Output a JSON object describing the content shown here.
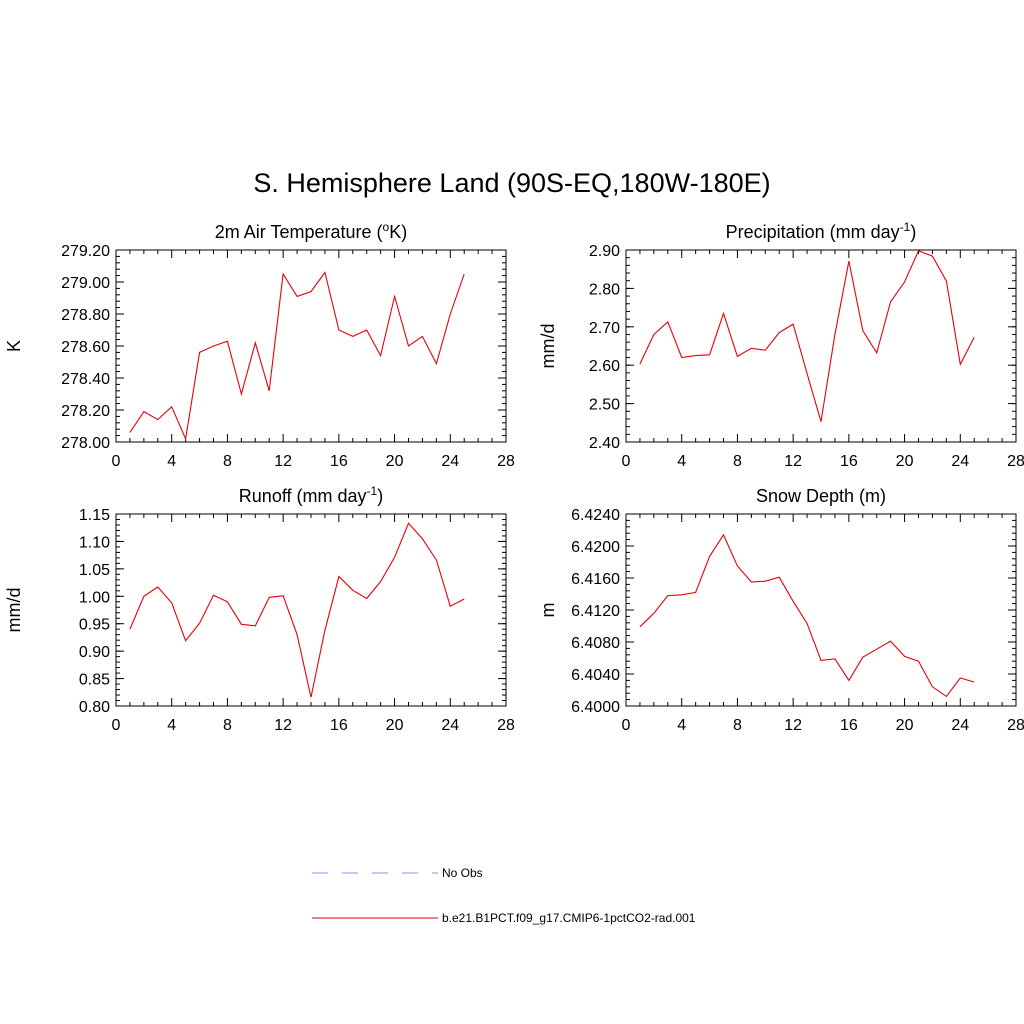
{
  "figure_title": "S. Hemisphere Land (90S-EQ,180W-180E)",
  "colors": {
    "model_line": "#e8000b",
    "obs_line": "#a8a8f0",
    "axis": "#000000"
  },
  "legend": {
    "items": [
      {
        "label": "No Obs",
        "style": "dashed",
        "color": "#a8a8f0"
      },
      {
        "label": "b.e21.B1PCT.f09_g17.CMIP6-1pctCO2-rad.001",
        "style": "solid",
        "color": "#e8000b"
      }
    ]
  },
  "chart_data": [
    {
      "type": "line",
      "title": "2m Air Temperature (",
      "title_sup": "o",
      "title_tail": "K)",
      "ylabel": "K",
      "xlim": [
        0,
        28
      ],
      "ylim": [
        278.0,
        279.2
      ],
      "xticks": [
        0,
        4,
        8,
        12,
        16,
        20,
        24,
        28
      ],
      "yticks": [
        278.0,
        278.2,
        278.4,
        278.6,
        278.8,
        279.0,
        279.2
      ],
      "ytick_labels": [
        "278.00",
        "278.20",
        "278.40",
        "278.60",
        "278.80",
        "279.00",
        "279.20"
      ],
      "x": [
        1,
        2,
        3,
        4,
        5,
        6,
        7,
        8,
        9,
        10,
        11,
        12,
        13,
        14,
        15,
        16,
        17,
        18,
        19,
        20,
        21,
        22,
        23,
        24,
        25
      ],
      "series": [
        {
          "values": [
            278.06,
            278.19,
            278.14,
            278.22,
            278.02,
            278.56,
            278.6,
            278.63,
            278.3,
            278.62,
            278.32,
            279.05,
            278.91,
            278.94,
            279.06,
            278.7,
            278.66,
            278.7,
            278.54,
            278.91,
            278.6,
            278.66,
            278.49,
            278.8,
            279.05
          ]
        }
      ]
    },
    {
      "type": "line",
      "title": "Precipitation (mm day",
      "title_sup": "-1",
      "title_tail": ")",
      "ylabel": "mm/d",
      "xlim": [
        0,
        28
      ],
      "ylim": [
        2.4,
        2.9
      ],
      "xticks": [
        0,
        4,
        8,
        12,
        16,
        20,
        24,
        28
      ],
      "yticks": [
        2.4,
        2.5,
        2.6,
        2.7,
        2.8,
        2.9
      ],
      "ytick_labels": [
        "2.40",
        "2.50",
        "2.60",
        "2.70",
        "2.80",
        "2.90"
      ],
      "x": [
        1,
        2,
        3,
        4,
        5,
        6,
        7,
        8,
        9,
        10,
        11,
        12,
        13,
        14,
        15,
        16,
        17,
        18,
        19,
        20,
        21,
        22,
        23,
        24,
        25
      ],
      "series": [
        {
          "values": [
            2.603,
            2.68,
            2.713,
            2.62,
            2.625,
            2.627,
            2.735,
            2.623,
            2.644,
            2.639,
            2.685,
            2.707,
            2.578,
            2.453,
            2.68,
            2.871,
            2.69,
            2.632,
            2.765,
            2.817,
            2.898,
            2.884,
            2.819,
            2.602,
            2.673
          ]
        }
      ]
    },
    {
      "type": "line",
      "title": "Runoff (mm day",
      "title_sup": "-1",
      "title_tail": ")",
      "ylabel": "mm/d",
      "xlim": [
        0,
        28
      ],
      "ylim": [
        0.8,
        1.15
      ],
      "xticks": [
        0,
        4,
        8,
        12,
        16,
        20,
        24,
        28
      ],
      "yticks": [
        0.8,
        0.85,
        0.9,
        0.95,
        1.0,
        1.05,
        1.1,
        1.15
      ],
      "ytick_labels": [
        "0.80",
        "0.85",
        "0.90",
        "0.95",
        "1.00",
        "1.05",
        "1.10",
        "1.15"
      ],
      "x": [
        1,
        2,
        3,
        4,
        5,
        6,
        7,
        8,
        9,
        10,
        11,
        12,
        13,
        14,
        15,
        16,
        17,
        18,
        19,
        20,
        21,
        22,
        23,
        24,
        25
      ],
      "series": [
        {
          "values": [
            0.94,
            1.0,
            1.017,
            0.988,
            0.919,
            0.951,
            1.002,
            0.99,
            0.949,
            0.946,
            0.998,
            1.001,
            0.93,
            0.816,
            0.938,
            1.036,
            1.011,
            0.996,
            1.027,
            1.071,
            1.133,
            1.105,
            1.066,
            0.982,
            0.995
          ]
        }
      ]
    },
    {
      "type": "line",
      "title": "Snow Depth (m)",
      "title_sup": "",
      "title_tail": "",
      "ylabel": "m",
      "xlim": [
        0,
        28
      ],
      "ylim": [
        6.4,
        6.424
      ],
      "xticks": [
        0,
        4,
        8,
        12,
        16,
        20,
        24,
        28
      ],
      "yticks": [
        6.4,
        6.404,
        6.408,
        6.412,
        6.416,
        6.42,
        6.424
      ],
      "ytick_labels": [
        "6.4000",
        "6.4040",
        "6.4080",
        "6.4120",
        "6.4160",
        "6.4200",
        "6.4240"
      ],
      "x": [
        1,
        2,
        3,
        4,
        5,
        6,
        7,
        8,
        9,
        10,
        11,
        12,
        13,
        14,
        15,
        16,
        17,
        18,
        19,
        20,
        21,
        22,
        23,
        24,
        25
      ],
      "series": [
        {
          "values": [
            6.4099,
            6.4116,
            6.4138,
            6.4139,
            6.4142,
            6.4187,
            6.4214,
            6.4175,
            6.4155,
            6.4156,
            6.4161,
            6.4131,
            6.4103,
            6.4057,
            6.4059,
            6.4032,
            6.4061,
            6.4071,
            6.4081,
            6.4062,
            6.4056,
            6.4024,
            6.4012,
            6.4035,
            6.403
          ]
        }
      ]
    }
  ]
}
